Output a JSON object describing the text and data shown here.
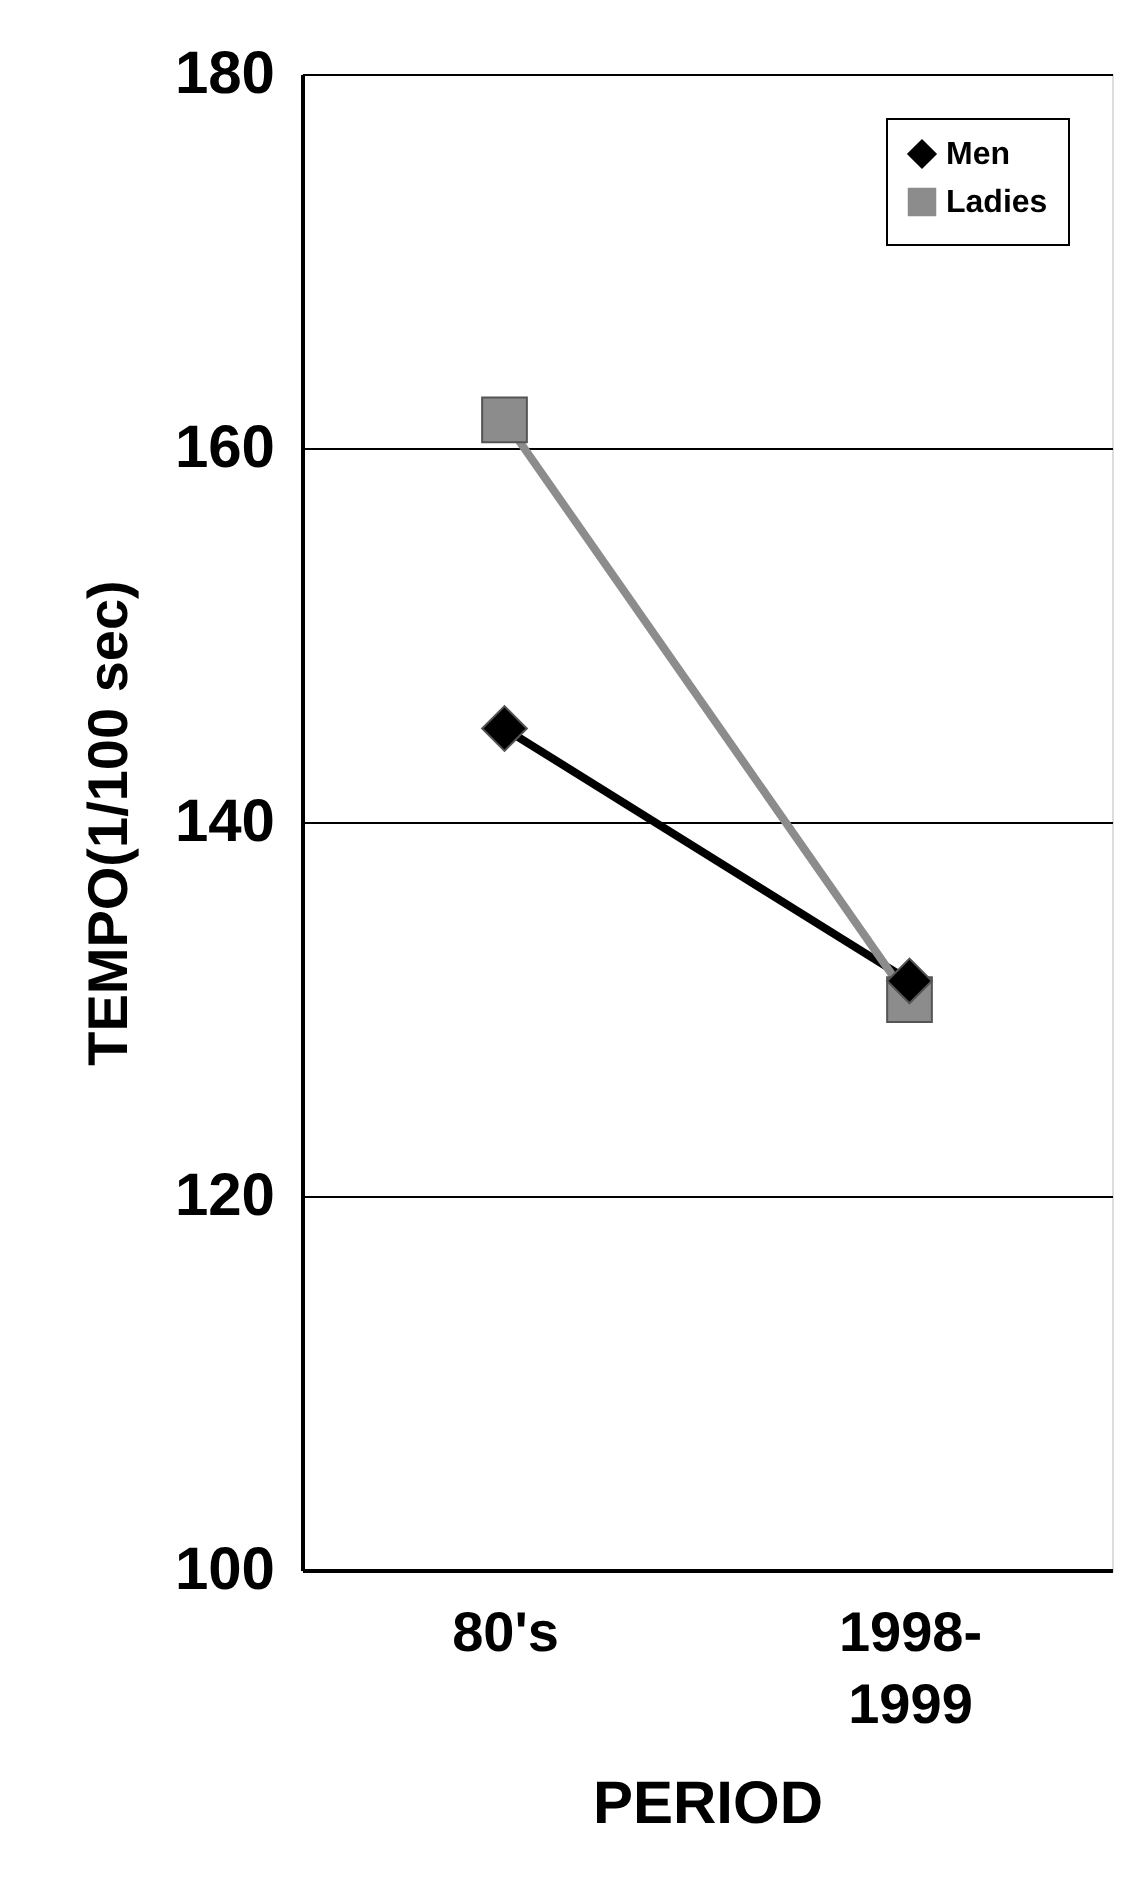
{
  "chart_data": {
    "type": "line",
    "xlabel": "PERIOD",
    "ylabel": "TEMPO(1/100 sec)",
    "categories": [
      "80's",
      "1998-1999"
    ],
    "series": [
      {
        "name": "Men",
        "color": "#000000",
        "marker": "diamond",
        "values": [
          145,
          131.5
        ]
      },
      {
        "name": "Ladies",
        "color": "#8c8c8c",
        "marker": "square",
        "values": [
          161.5,
          130.5
        ]
      }
    ],
    "ylim": [
      100,
      180
    ],
    "yticks": [
      100,
      120,
      140,
      160,
      180
    ],
    "grid": "y",
    "legend": "top right",
    "line_style": "solid"
  }
}
